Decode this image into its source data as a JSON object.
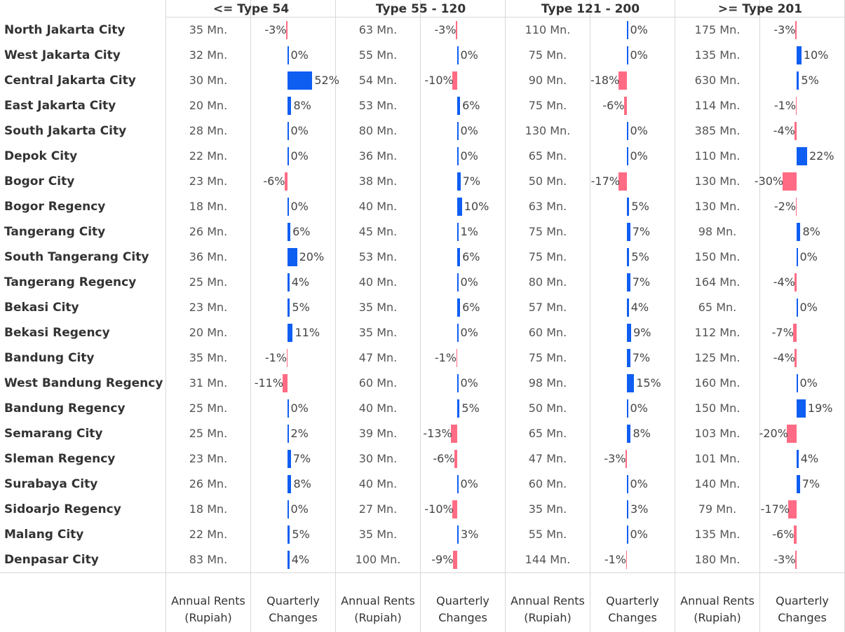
{
  "groups": [
    ">= Type 201"
  ],
  "footer": {
    "rent_line1": "Annual Rents",
    "rent_line2": "(Rupiah)",
    "change_line1": "Quarterly",
    "change_line2": "Changes"
  },
  "colors": {
    "positive": "#0f5ef2",
    "negative": "#ff6b84",
    "grid": "#d8d8d8"
  },
  "chart_data": {
    "type": "table",
    "groups": [
      "<= Type 54",
      "Type 55 - 120",
      "Type 121 - 200",
      ">= Type 201"
    ],
    "measures": [
      "Annual Rents (Rupiah)",
      "Quarterly Changes"
    ],
    "rows": [
      {
        "city": "North Jakarta City",
        "rents": [
          "35 Mn.",
          "63 Mn.",
          "110 Mn.",
          "175 Mn."
        ],
        "changes": [
          -3,
          -3,
          0,
          -3
        ]
      },
      {
        "city": "West Jakarta City",
        "rents": [
          "32 Mn.",
          "55 Mn.",
          "75 Mn.",
          "135 Mn."
        ],
        "changes": [
          0,
          0,
          0,
          10
        ]
      },
      {
        "city": "Central Jakarta City",
        "rents": [
          "30 Mn.",
          "54 Mn.",
          "90 Mn.",
          "630 Mn."
        ],
        "changes": [
          52,
          -10,
          -18,
          5
        ]
      },
      {
        "city": "East Jakarta City",
        "rents": [
          "20 Mn.",
          "53 Mn.",
          "75 Mn.",
          "114 Mn."
        ],
        "changes": [
          8,
          6,
          -6,
          -1
        ]
      },
      {
        "city": "South Jakarta City",
        "rents": [
          "28 Mn.",
          "80 Mn.",
          "130 Mn.",
          "385 Mn."
        ],
        "changes": [
          0,
          0,
          0,
          -4
        ]
      },
      {
        "city": "Depok City",
        "rents": [
          "22 Mn.",
          "36 Mn.",
          "65 Mn.",
          "110 Mn."
        ],
        "changes": [
          0,
          0,
          0,
          22
        ]
      },
      {
        "city": "Bogor City",
        "rents": [
          "23 Mn.",
          "38 Mn.",
          "50 Mn.",
          "130 Mn."
        ],
        "changes": [
          -6,
          7,
          -17,
          -30
        ]
      },
      {
        "city": "Bogor Regency",
        "rents": [
          "18 Mn.",
          "40 Mn.",
          "63 Mn.",
          "130 Mn."
        ],
        "changes": [
          0,
          10,
          5,
          -2
        ]
      },
      {
        "city": "Tangerang City",
        "rents": [
          "26 Mn.",
          "45 Mn.",
          "75 Mn.",
          "98 Mn."
        ],
        "changes": [
          6,
          1,
          7,
          8
        ]
      },
      {
        "city": "South Tangerang City",
        "rents": [
          "36 Mn.",
          "53 Mn.",
          "75 Mn.",
          "150 Mn."
        ],
        "changes": [
          20,
          6,
          5,
          0
        ]
      },
      {
        "city": "Tangerang Regency",
        "rents": [
          "25 Mn.",
          "40 Mn.",
          "80 Mn.",
          "164 Mn."
        ],
        "changes": [
          4,
          0,
          7,
          -4
        ]
      },
      {
        "city": "Bekasi City",
        "rents": [
          "23 Mn.",
          "35 Mn.",
          "57 Mn.",
          "65 Mn."
        ],
        "changes": [
          5,
          6,
          4,
          0
        ]
      },
      {
        "city": "Bekasi Regency",
        "rents": [
          "20 Mn.",
          "35 Mn.",
          "60 Mn.",
          "112 Mn."
        ],
        "changes": [
          11,
          0,
          9,
          -7
        ]
      },
      {
        "city": "Bandung City",
        "rents": [
          "35 Mn.",
          "47 Mn.",
          "75 Mn.",
          "125 Mn."
        ],
        "changes": [
          -1,
          -1,
          7,
          -4
        ]
      },
      {
        "city": "West Bandung Regency",
        "rents": [
          "31 Mn.",
          "60 Mn.",
          "98 Mn.",
          "160 Mn."
        ],
        "changes": [
          -11,
          0,
          15,
          0
        ]
      },
      {
        "city": "Bandung Regency",
        "rents": [
          "25 Mn.",
          "40 Mn.",
          "50 Mn.",
          "150 Mn."
        ],
        "changes": [
          0,
          5,
          0,
          19
        ]
      },
      {
        "city": "Semarang City",
        "rents": [
          "25 Mn.",
          "39 Mn.",
          "65 Mn.",
          "103 Mn."
        ],
        "changes": [
          2,
          -13,
          8,
          -20
        ]
      },
      {
        "city": "Sleman Regency",
        "rents": [
          "23 Mn.",
          "30 Mn.",
          "47 Mn.",
          "101 Mn."
        ],
        "changes": [
          7,
          -6,
          -3,
          4
        ]
      },
      {
        "city": "Surabaya City",
        "rents": [
          "26 Mn.",
          "40 Mn.",
          "60 Mn.",
          "140 Mn."
        ],
        "changes": [
          8,
          0,
          0,
          7
        ]
      },
      {
        "city": "Sidoarjo Regency",
        "rents": [
          "18 Mn.",
          "27 Mn.",
          "35 Mn.",
          "79 Mn."
        ],
        "changes": [
          0,
          -10,
          3,
          -17
        ]
      },
      {
        "city": "Malang City",
        "rents": [
          "22 Mn.",
          "35 Mn.",
          "55 Mn.",
          "135 Mn."
        ],
        "changes": [
          5,
          3,
          0,
          -6
        ]
      },
      {
        "city": "Denpasar City",
        "rents": [
          "83 Mn.",
          "100 Mn.",
          "144 Mn.",
          "180 Mn."
        ],
        "changes": [
          4,
          -9,
          -1,
          -3
        ]
      }
    ]
  }
}
